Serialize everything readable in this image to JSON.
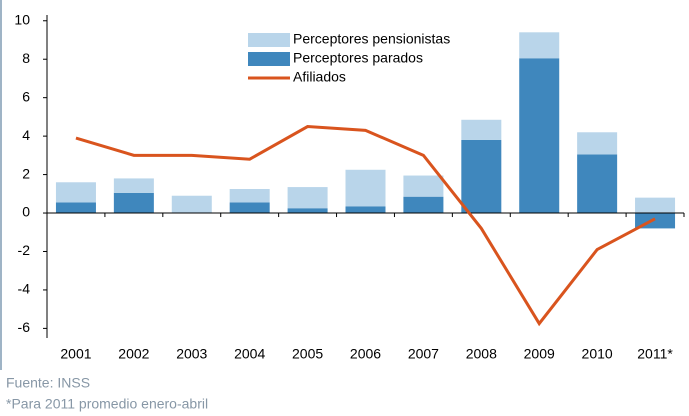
{
  "chart_data": {
    "type": "bar",
    "categories": [
      "2001",
      "2002",
      "2003",
      "2004",
      "2005",
      "2006",
      "2007",
      "2008",
      "2009",
      "2010",
      "2011*"
    ],
    "series": [
      {
        "name": "Perceptores pensionistas",
        "color": "#b9d5ea",
        "kind": "bar",
        "values": [
          1.05,
          0.75,
          0.9,
          0.7,
          1.1,
          1.9,
          1.1,
          1.05,
          1.35,
          1.15,
          0.8
        ]
      },
      {
        "name": "Perceptores parados",
        "color": "#3f87bd",
        "kind": "bar",
        "values": [
          0.55,
          1.05,
          0,
          0.55,
          0.25,
          0.35,
          0.85,
          3.8,
          8.05,
          3.05,
          -0.8
        ]
      },
      {
        "name": "Afiliados",
        "color": "#d9541e",
        "kind": "line",
        "values": [
          3.9,
          3.0,
          3.0,
          2.8,
          4.5,
          4.3,
          3.0,
          -0.8,
          -5.75,
          -1.9,
          -0.3
        ]
      }
    ],
    "ylim": [
      -6.5,
      10.3
    ],
    "yticks": [
      -6,
      -4,
      -2,
      0,
      2,
      4,
      6,
      8,
      10
    ],
    "source": "Fuente: INSS",
    "note": "*Para 2011 promedio enero-abril"
  }
}
